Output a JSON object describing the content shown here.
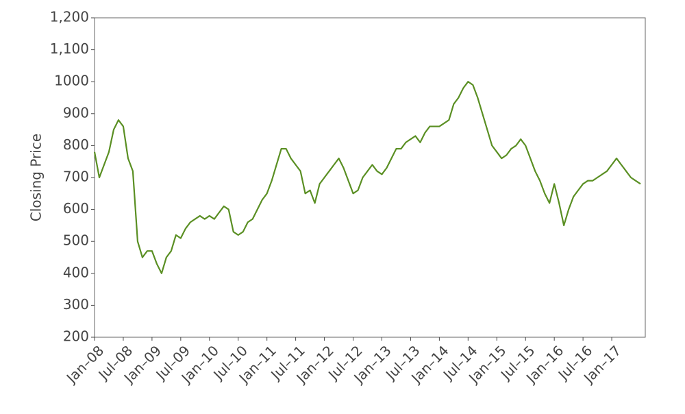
{
  "chart_data": {
    "type": "line",
    "y_label": "Closing Price",
    "x": [
      "2008-01",
      "2008-02",
      "2008-03",
      "2008-04",
      "2008-05",
      "2008-06",
      "2008-07",
      "2008-08",
      "2008-09",
      "2008-10",
      "2008-11",
      "2008-12",
      "2009-01",
      "2009-02",
      "2009-03",
      "2009-04",
      "2009-05",
      "2009-06",
      "2009-07",
      "2009-08",
      "2009-09",
      "2009-10",
      "2009-11",
      "2009-12",
      "2010-01",
      "2010-02",
      "2010-03",
      "2010-04",
      "2010-05",
      "2010-06",
      "2010-07",
      "2010-08",
      "2010-09",
      "2010-10",
      "2010-11",
      "2010-12",
      "2011-01",
      "2011-02",
      "2011-03",
      "2011-04",
      "2011-05",
      "2011-06",
      "2011-07",
      "2011-08",
      "2011-09",
      "2011-10",
      "2011-11",
      "2011-12",
      "2012-01",
      "2012-02",
      "2012-03",
      "2012-04",
      "2012-05",
      "2012-06",
      "2012-07",
      "2012-08",
      "2012-09",
      "2012-10",
      "2012-11",
      "2012-12",
      "2013-01",
      "2013-02",
      "2013-03",
      "2013-04",
      "2013-05",
      "2013-06",
      "2013-07",
      "2013-08",
      "2013-09",
      "2013-10",
      "2013-11",
      "2013-12",
      "2014-01",
      "2014-02",
      "2014-03",
      "2014-04",
      "2014-05",
      "2014-06",
      "2014-07",
      "2014-08",
      "2014-09",
      "2014-10",
      "2014-11",
      "2014-12",
      "2015-01",
      "2015-02",
      "2015-03",
      "2015-04",
      "2015-05",
      "2015-06",
      "2015-07",
      "2015-08",
      "2015-09",
      "2015-10",
      "2015-11",
      "2015-12",
      "2016-01",
      "2016-02",
      "2016-03",
      "2016-04",
      "2016-05",
      "2016-06",
      "2016-07",
      "2016-08",
      "2016-09",
      "2016-10",
      "2016-11",
      "2016-12",
      "2017-01",
      "2017-02",
      "2017-03",
      "2017-04",
      "2017-05",
      "2017-06",
      "2017-07"
    ],
    "series": [
      {
        "name": "Closing Price",
        "color": "#5a8f23",
        "values": [
          780,
          700,
          740,
          780,
          850,
          880,
          860,
          760,
          720,
          500,
          450,
          470,
          470,
          430,
          400,
          450,
          470,
          520,
          510,
          540,
          560,
          570,
          580,
          570,
          580,
          570,
          590,
          610,
          600,
          530,
          520,
          530,
          560,
          570,
          600,
          630,
          650,
          690,
          740,
          790,
          790,
          760,
          740,
          720,
          650,
          660,
          620,
          680,
          700,
          720,
          740,
          760,
          730,
          690,
          650,
          660,
          700,
          720,
          740,
          720,
          710,
          730,
          760,
          790,
          790,
          810,
          820,
          830,
          810,
          840,
          860,
          860,
          860,
          870,
          880,
          930,
          950,
          980,
          1000,
          990,
          950,
          900,
          850,
          800,
          780,
          760,
          770,
          790,
          800,
          820,
          800,
          760,
          720,
          690,
          650,
          620,
          680,
          620,
          550,
          600,
          640,
          660,
          680,
          690,
          690,
          700,
          710,
          720,
          740,
          760,
          740,
          720,
          700,
          690,
          680
        ]
      }
    ],
    "xlim": [
      "2008-01",
      "2017-08"
    ],
    "xticks": [
      {
        "value": "2008-01",
        "label": "Jan–08"
      },
      {
        "value": "2008-07",
        "label": "Jul–08"
      },
      {
        "value": "2009-01",
        "label": "Jan–09"
      },
      {
        "value": "2009-07",
        "label": "Jul–09"
      },
      {
        "value": "2010-01",
        "label": "Jan–10"
      },
      {
        "value": "2010-07",
        "label": "Jul–10"
      },
      {
        "value": "2011-01",
        "label": "Jan–11"
      },
      {
        "value": "2011-07",
        "label": "Jul–11"
      },
      {
        "value": "2012-01",
        "label": "Jan–12"
      },
      {
        "value": "2012-07",
        "label": "Jul–12"
      },
      {
        "value": "2013-01",
        "label": "Jan–13"
      },
      {
        "value": "2013-07",
        "label": "Jul–13"
      },
      {
        "value": "2014-01",
        "label": "Jan–14"
      },
      {
        "value": "2014-07",
        "label": "Jul–14"
      },
      {
        "value": "2015-01",
        "label": "Jan–15"
      },
      {
        "value": "2015-07",
        "label": "Jul–15"
      },
      {
        "value": "2016-01",
        "label": "Jan–16"
      },
      {
        "value": "2016-07",
        "label": "Jul–16"
      },
      {
        "value": "2017-01",
        "label": "Jan–17"
      }
    ],
    "ylim": [
      200,
      1200
    ],
    "yticks": [
      200,
      300,
      400,
      500,
      600,
      700,
      800,
      900,
      1000,
      {
        "value": 1100,
        "label": "1,100"
      },
      {
        "value": 1200,
        "label": "1,200"
      }
    ],
    "grid": false
  }
}
